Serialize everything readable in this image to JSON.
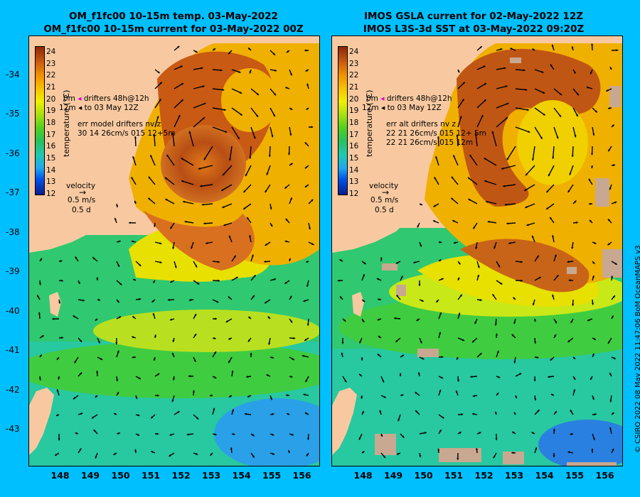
{
  "left_panel": {
    "title_line1": "OM_f1fc00 10-15m temp. 03-May-2022",
    "title_line2": "OM_f1fc00 10-15m current for 03-May-2022 00Z",
    "colorbar_label": "temperature (°C)",
    "colorbar_ticks": [
      "24",
      "23",
      "22",
      "21",
      "20",
      "19",
      "18",
      "17",
      "16",
      "15",
      "14",
      "13",
      "12"
    ],
    "legend_drifters": "drifters 48h@12h",
    "legend_0m": "0m",
    "legend_12m": "12m",
    "legend_to": "to 03 May 12Z",
    "legend_err1": "err model drifters nv z",
    "legend_err2": "30 14 26cm/s 015 12+5m",
    "legend_err3": "",
    "velocity_label": "velocity",
    "velocity_speed": "0.5 m/s",
    "velocity_days": "0.5 d"
  },
  "right_panel": {
    "title_line1": "IMOS GSLA current for 02-May-2022 12Z",
    "title_line2": "IMOS L3S-3d SST at 03-May-2022 09:20Z",
    "colorbar_label": "temperature (°C)",
    "colorbar_ticks": [
      "24",
      "23",
      "22",
      "21",
      "20",
      "19",
      "18",
      "17",
      "16",
      "15",
      "14",
      "13",
      "12"
    ],
    "legend_drifters": "drifters 48h@12h",
    "legend_0m": "0m",
    "legend_12m": "12m",
    "legend_to": "to 03 May 12Z",
    "legend_err1": "err alt drifters nv z",
    "legend_err2": "22 21 26cm/s 015 12+ 5m",
    "legend_err3": "22 21 26cm/s 015 12m",
    "velocity_label": "velocity",
    "velocity_speed": "0.5 m/s",
    "velocity_days": "0.5 d"
  },
  "axes": {
    "latitude_ticks": [
      "-34",
      "-35",
      "-36",
      "-37",
      "-38",
      "-39",
      "-40",
      "-41",
      "-42",
      "-43"
    ],
    "longitude_ticks": [
      "148",
      "149",
      "150",
      "151",
      "152",
      "153",
      "154",
      "155",
      "156"
    ],
    "lat_range": [
      -43.9,
      -33.0
    ],
    "lon_range": [
      147.0,
      156.6
    ]
  },
  "credit": "© CSIRO 2022   08 May 2022 11:47:06 BoM OceanMAPS v3",
  "colors": {
    "background": "#00bfff",
    "land": "#f8c9a0",
    "cloud_mask": "#c8a890",
    "warm_core": "#b85218",
    "arrows": "#000000"
  }
}
